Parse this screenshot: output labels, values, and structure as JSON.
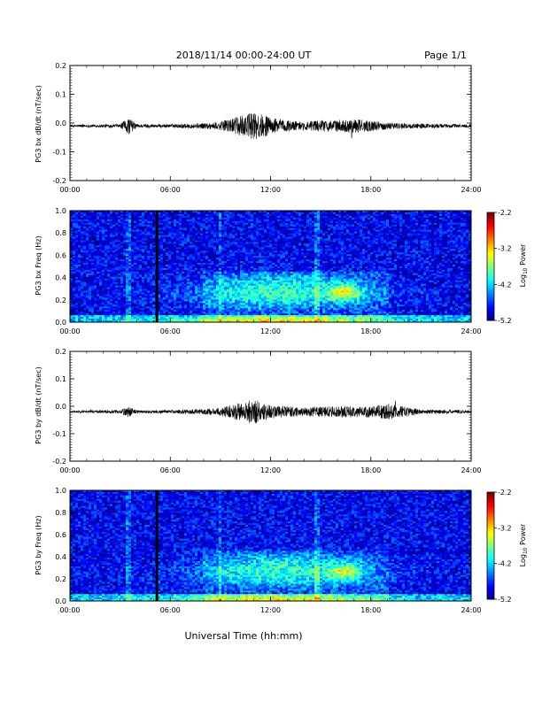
{
  "header": {
    "date_range": "2018/11/14  00:00-24:00 UT",
    "page": "Page 1/1"
  },
  "chart_data": [
    {
      "type": "line",
      "ylabel": "PG3 bx dB/dt (nT/sec)",
      "xticks": [
        "00:00",
        "06:00",
        "12:00",
        "18:00",
        "24:00"
      ],
      "xlim_hours": [
        0,
        24
      ],
      "ylim": [
        -0.2,
        0.2
      ],
      "yticks": [
        "0.2",
        "0.1",
        "0.0",
        "-0.1",
        "-0.2"
      ],
      "baseline": -0.01,
      "envelope_hours": [
        0,
        3,
        3.5,
        4,
        6,
        8,
        9,
        10,
        11,
        11.5,
        12,
        13,
        14,
        15,
        16,
        17,
        18,
        19,
        21,
        24
      ],
      "envelope_amp": [
        0.004,
        0.006,
        0.03,
        0.007,
        0.006,
        0.01,
        0.015,
        0.03,
        0.05,
        0.04,
        0.03,
        0.02,
        0.015,
        0.02,
        0.02,
        0.025,
        0.018,
        0.012,
        0.008,
        0.006
      ]
    },
    {
      "type": "heatmap",
      "ylabel": "PG3 bx Freq (Hz)",
      "xticks": [
        "00:00",
        "06:00",
        "12:00",
        "18:00",
        "24:00"
      ],
      "xlim_hours": [
        0,
        24
      ],
      "ylim": [
        0.0,
        1.0
      ],
      "yticks": [
        "1.0",
        "0.8",
        "0.6",
        "0.4",
        "0.2",
        "0.0"
      ],
      "colorbar": {
        "label": "Log10 Power",
        "ticks": [
          "-2.2",
          "-3.2",
          "-4.2",
          "-5.2"
        ],
        "range": [
          -5.2,
          -2.2
        ]
      },
      "gap_hour": 5.2
    },
    {
      "type": "line",
      "ylabel": "PG3 by dB/dt (nT/sec)",
      "xticks": [
        "00:00",
        "06:00",
        "12:00",
        "18:00",
        "24:00"
      ],
      "xlim_hours": [
        0,
        24
      ],
      "ylim": [
        -0.2,
        0.2
      ],
      "yticks": [
        "0.2",
        "0.1",
        "0.0",
        "-0.1",
        "-0.2"
      ],
      "baseline": -0.02,
      "envelope_hours": [
        0,
        3,
        3.5,
        4,
        6,
        8,
        9,
        10,
        11,
        11.5,
        12,
        13,
        14,
        15,
        16,
        17,
        18,
        19,
        21,
        24
      ],
      "envelope_amp": [
        0.004,
        0.006,
        0.02,
        0.006,
        0.006,
        0.01,
        0.015,
        0.03,
        0.05,
        0.035,
        0.025,
        0.02,
        0.015,
        0.02,
        0.02,
        0.02,
        0.02,
        0.03,
        0.008,
        0.006
      ]
    },
    {
      "type": "heatmap",
      "ylabel": "PG3 by Freq (Hz)",
      "xticks": [
        "00:00",
        "06:00",
        "12:00",
        "18:00",
        "24:00"
      ],
      "xlim_hours": [
        0,
        24
      ],
      "ylim": [
        0.0,
        1.0
      ],
      "yticks": [
        "1.0",
        "0.8",
        "0.6",
        "0.4",
        "0.2",
        "0.0"
      ],
      "colorbar": {
        "label": "Log10 Power",
        "ticks": [
          "-2.2",
          "-3.2",
          "-4.2",
          "-5.2"
        ],
        "range": [
          -5.2,
          -2.2
        ]
      },
      "gap_hour": 5.2
    }
  ],
  "xlabel": "Universal Time (hh:mm)"
}
